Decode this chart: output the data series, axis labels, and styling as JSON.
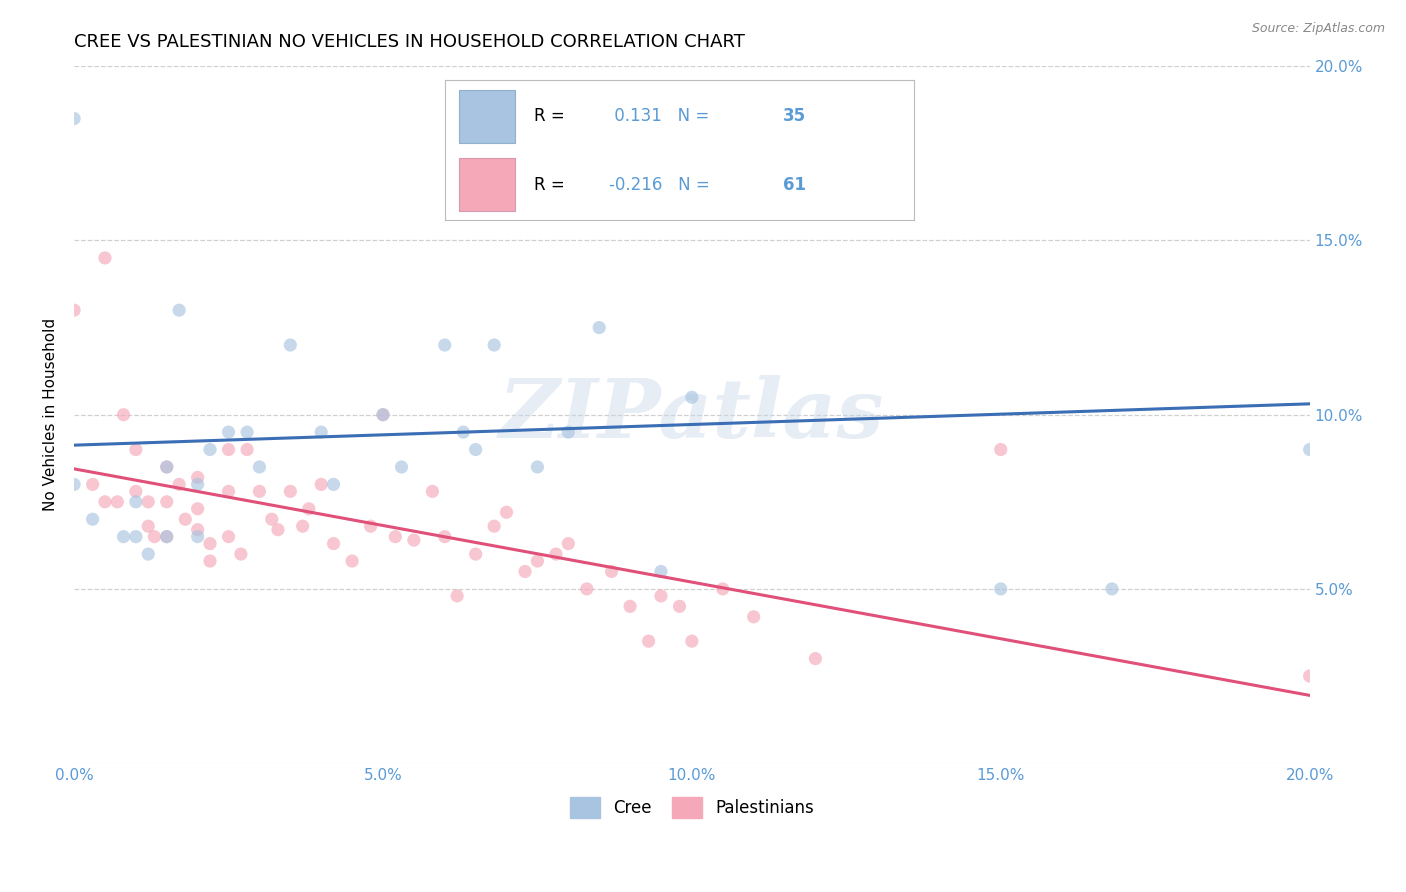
{
  "title": "CREE VS PALESTINIAN NO VEHICLES IN HOUSEHOLD CORRELATION CHART",
  "source": "Source: ZipAtlas.com",
  "ylabel": "No Vehicles in Household",
  "xlim": [
    0.0,
    0.2
  ],
  "ylim": [
    0.0,
    0.2
  ],
  "xtick_vals": [
    0.0,
    0.05,
    0.1,
    0.15,
    0.2
  ],
  "xtick_labels": [
    "0.0%",
    "5.0%",
    "10.0%",
    "15.0%",
    "20.0%"
  ],
  "ytick_vals": [
    0.05,
    0.1,
    0.15,
    0.2
  ],
  "ytick_labels": [
    "5.0%",
    "10.0%",
    "15.0%",
    "20.0%"
  ],
  "cree_R": "0.131",
  "cree_N": "35",
  "pal_R": "-0.216",
  "pal_N": "61",
  "cree_color": "#a8c4e0",
  "pal_color": "#f4a8b8",
  "cree_line_color": "#3b6eb5",
  "pal_line_color": "#e05078",
  "tick_color": "#5b9bd5",
  "watermark": "ZIPatlas",
  "cree_x": [
    0.0,
    0.0,
    0.003,
    0.008,
    0.01,
    0.01,
    0.012,
    0.015,
    0.015,
    0.017,
    0.02,
    0.02,
    0.022,
    0.025,
    0.028,
    0.03,
    0.035,
    0.04,
    0.042,
    0.05,
    0.053,
    0.06,
    0.063,
    0.065,
    0.068,
    0.075,
    0.08,
    0.085,
    0.095,
    0.1,
    0.11,
    0.13,
    0.15,
    0.168,
    0.2
  ],
  "cree_y": [
    0.185,
    0.08,
    0.07,
    0.065,
    0.075,
    0.065,
    0.06,
    0.085,
    0.065,
    0.13,
    0.08,
    0.065,
    0.09,
    0.095,
    0.095,
    0.085,
    0.12,
    0.095,
    0.08,
    0.1,
    0.085,
    0.12,
    0.095,
    0.09,
    0.12,
    0.085,
    0.095,
    0.125,
    0.055,
    0.105,
    0.175,
    0.182,
    0.05,
    0.05,
    0.09
  ],
  "pal_x": [
    0.0,
    0.003,
    0.005,
    0.005,
    0.007,
    0.008,
    0.01,
    0.01,
    0.012,
    0.012,
    0.013,
    0.015,
    0.015,
    0.015,
    0.017,
    0.018,
    0.02,
    0.02,
    0.02,
    0.022,
    0.022,
    0.025,
    0.025,
    0.025,
    0.027,
    0.028,
    0.03,
    0.032,
    0.033,
    0.035,
    0.037,
    0.038,
    0.04,
    0.042,
    0.045,
    0.048,
    0.05,
    0.052,
    0.055,
    0.058,
    0.06,
    0.062,
    0.065,
    0.068,
    0.07,
    0.073,
    0.075,
    0.078,
    0.08,
    0.083,
    0.087,
    0.09,
    0.093,
    0.095,
    0.098,
    0.1,
    0.105,
    0.11,
    0.12,
    0.15,
    0.2
  ],
  "pal_y": [
    0.13,
    0.08,
    0.145,
    0.075,
    0.075,
    0.1,
    0.09,
    0.078,
    0.068,
    0.075,
    0.065,
    0.085,
    0.075,
    0.065,
    0.08,
    0.07,
    0.082,
    0.073,
    0.067,
    0.063,
    0.058,
    0.09,
    0.078,
    0.065,
    0.06,
    0.09,
    0.078,
    0.07,
    0.067,
    0.078,
    0.068,
    0.073,
    0.08,
    0.063,
    0.058,
    0.068,
    0.1,
    0.065,
    0.064,
    0.078,
    0.065,
    0.048,
    0.06,
    0.068,
    0.072,
    0.055,
    0.058,
    0.06,
    0.063,
    0.05,
    0.055,
    0.045,
    0.035,
    0.048,
    0.045,
    0.035,
    0.05,
    0.042,
    0.03,
    0.09,
    0.025
  ],
  "title_fontsize": 13,
  "axis_label_fontsize": 11,
  "tick_fontsize": 11,
  "marker_size": 90,
  "alpha": 0.65
}
